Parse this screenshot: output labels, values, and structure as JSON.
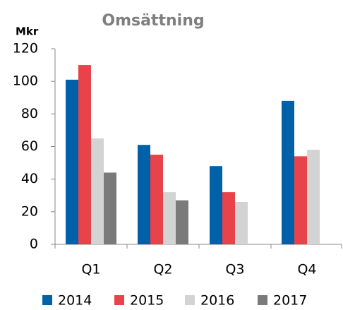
{
  "chart_data": {
    "type": "bar",
    "title": "Omsättning",
    "y_label": "Mkr",
    "categories": [
      "Q1",
      "Q2",
      "Q3",
      "Q4"
    ],
    "series": [
      {
        "name": "2014",
        "color": "#0060a8",
        "values": [
          101,
          61,
          48,
          88
        ]
      },
      {
        "name": "2015",
        "color": "#e8434a",
        "values": [
          110,
          55,
          32,
          54
        ]
      },
      {
        "name": "2016",
        "color": "#d3d3d3",
        "values": [
          65,
          32,
          26,
          58
        ]
      },
      {
        "name": "2017",
        "color": "#7a7a7a",
        "values": [
          44,
          27,
          null,
          null
        ]
      }
    ],
    "ylim": [
      0,
      120
    ],
    "yticks": [
      0,
      20,
      40,
      60,
      80,
      100,
      120
    ],
    "grid": false,
    "legend": "bottom"
  }
}
